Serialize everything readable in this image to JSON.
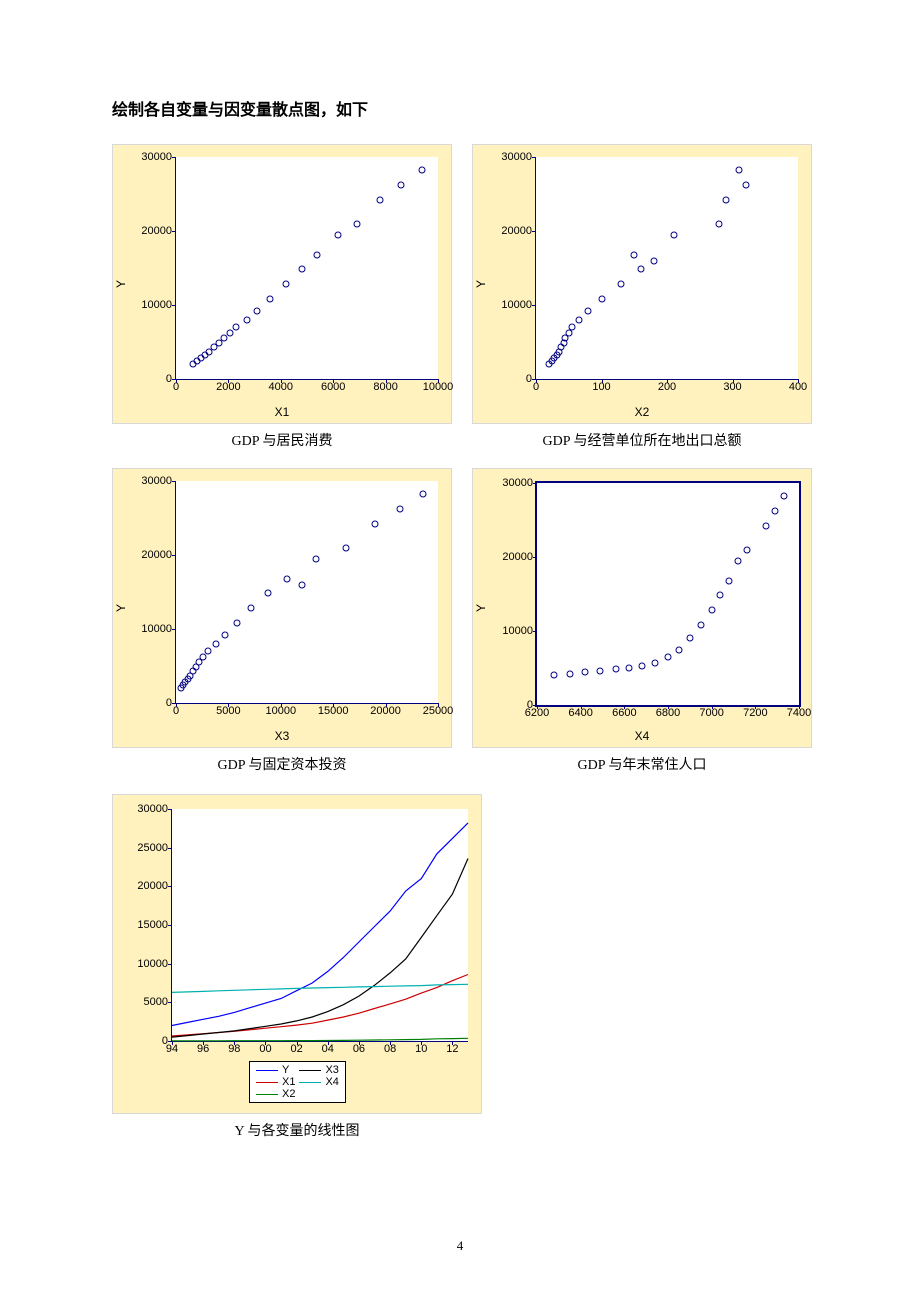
{
  "heading": "绘制各自变量与因变量散点图，如下",
  "page_number": "4",
  "scatter_charts": [
    {
      "id": "chart-x1",
      "caption": "GDP 与居民消费",
      "ylabel": "Y",
      "xlabel": "X1",
      "background_color": "#fff2be",
      "plot_bg": "#ffffff",
      "axis_color": "#000080",
      "marker_color": "#000080",
      "label_fontsize": 12,
      "tick_fontsize": 11,
      "xlim": [
        0,
        10000
      ],
      "ylim": [
        0,
        30000
      ],
      "xticks": [
        0,
        2000,
        4000,
        6000,
        8000,
        10000
      ],
      "yticks": [
        0,
        10000,
        20000,
        30000
      ],
      "full_border": false,
      "points": [
        [
          650,
          2000
        ],
        [
          800,
          2400
        ],
        [
          950,
          2800
        ],
        [
          1100,
          3200
        ],
        [
          1250,
          3700
        ],
        [
          1450,
          4300
        ],
        [
          1650,
          4900
        ],
        [
          1850,
          5500
        ],
        [
          2050,
          6200
        ],
        [
          2300,
          7000
        ],
        [
          2700,
          8000
        ],
        [
          3100,
          9200
        ],
        [
          3600,
          10800
        ],
        [
          4200,
          12800
        ],
        [
          4800,
          14800
        ],
        [
          5400,
          16800
        ],
        [
          6200,
          19400
        ],
        [
          6900,
          21000
        ],
        [
          7800,
          24200
        ],
        [
          8600,
          26200
        ],
        [
          9400,
          28200
        ]
      ]
    },
    {
      "id": "chart-x2",
      "caption": "GDP 与经营单位所在地出口总额",
      "ylabel": "Y",
      "xlabel": "X2",
      "background_color": "#fff2be",
      "plot_bg": "#ffffff",
      "axis_color": "#000080",
      "marker_color": "#000080",
      "label_fontsize": 12,
      "tick_fontsize": 11,
      "xlim": [
        0,
        400
      ],
      "ylim": [
        0,
        30000
      ],
      "xticks": [
        0,
        100,
        200,
        300,
        400
      ],
      "yticks": [
        0,
        10000,
        20000,
        30000
      ],
      "full_border": false,
      "points": [
        [
          20,
          2000
        ],
        [
          25,
          2400
        ],
        [
          28,
          2800
        ],
        [
          32,
          3200
        ],
        [
          35,
          3700
        ],
        [
          38,
          4300
        ],
        [
          42,
          4900
        ],
        [
          45,
          5500
        ],
        [
          50,
          6200
        ],
        [
          55,
          7000
        ],
        [
          65,
          8000
        ],
        [
          80,
          9200
        ],
        [
          100,
          10800
        ],
        [
          130,
          12800
        ],
        [
          160,
          14800
        ],
        [
          150,
          16800
        ],
        [
          210,
          19400
        ],
        [
          180,
          16000
        ],
        [
          280,
          21000
        ],
        [
          290,
          24200
        ],
        [
          320,
          26200
        ],
        [
          310,
          28200
        ]
      ]
    },
    {
      "id": "chart-x3",
      "caption": "GDP 与固定资本投资",
      "ylabel": "Y",
      "xlabel": "X3",
      "background_color": "#fff2be",
      "plot_bg": "#ffffff",
      "axis_color": "#000080",
      "marker_color": "#000080",
      "label_fontsize": 12,
      "tick_fontsize": 11,
      "xlim": [
        0,
        25000
      ],
      "ylim": [
        0,
        30000
      ],
      "xticks": [
        0,
        5000,
        10000,
        15000,
        20000,
        25000
      ],
      "yticks": [
        0,
        10000,
        20000,
        30000
      ],
      "full_border": false,
      "points": [
        [
          500,
          2000
        ],
        [
          700,
          2400
        ],
        [
          900,
          2800
        ],
        [
          1100,
          3200
        ],
        [
          1300,
          3700
        ],
        [
          1600,
          4300
        ],
        [
          1900,
          4900
        ],
        [
          2200,
          5500
        ],
        [
          2600,
          6200
        ],
        [
          3100,
          7000
        ],
        [
          3800,
          8000
        ],
        [
          4700,
          9200
        ],
        [
          5800,
          10800
        ],
        [
          7200,
          12800
        ],
        [
          8800,
          14800
        ],
        [
          10600,
          16800
        ],
        [
          13400,
          19400
        ],
        [
          12000,
          16000
        ],
        [
          16200,
          21000
        ],
        [
          19000,
          24200
        ],
        [
          21400,
          26200
        ],
        [
          23600,
          28200
        ]
      ]
    },
    {
      "id": "chart-x4",
      "caption": "GDP 与年末常住人口",
      "ylabel": "Y",
      "xlabel": "X4",
      "background_color": "#fff2be",
      "plot_bg": "#ffffff",
      "axis_color": "#000080",
      "marker_color": "#000080",
      "label_fontsize": 12,
      "tick_fontsize": 11,
      "xlim": [
        6200,
        7400
      ],
      "ylim": [
        0,
        30000
      ],
      "xticks": [
        6200,
        6400,
        6600,
        6800,
        7000,
        7200,
        7400
      ],
      "yticks": [
        0,
        10000,
        20000,
        30000
      ],
      "full_border": true,
      "points": [
        [
          6280,
          4000
        ],
        [
          6350,
          4200
        ],
        [
          6420,
          4400
        ],
        [
          6490,
          4600
        ],
        [
          6560,
          4800
        ],
        [
          6620,
          5000
        ],
        [
          6680,
          5300
        ],
        [
          6740,
          5700
        ],
        [
          6800,
          6500
        ],
        [
          6850,
          7500
        ],
        [
          6900,
          9000
        ],
        [
          6950,
          10800
        ],
        [
          7000,
          12800
        ],
        [
          7040,
          14800
        ],
        [
          7080,
          16800
        ],
        [
          7120,
          19400
        ],
        [
          7160,
          21000
        ],
        [
          7250,
          24200
        ],
        [
          7290,
          26200
        ],
        [
          7330,
          28200
        ]
      ]
    }
  ],
  "line_chart": {
    "id": "line-chart",
    "caption": "Y 与各变量的线性图",
    "background_color": "#fff2be",
    "plot_bg": "#ffffff",
    "axis_color": "#000080",
    "label_fontsize": 12,
    "tick_fontsize": 11,
    "xlim": [
      94,
      13
    ],
    "x_values": [
      94,
      95,
      96,
      97,
      98,
      99,
      100,
      101,
      102,
      103,
      104,
      105,
      106,
      107,
      108,
      109,
      110,
      111,
      112,
      113
    ],
    "xticks_pos": [
      94,
      96,
      98,
      100,
      102,
      104,
      106,
      108,
      110,
      112
    ],
    "xticks_labels": [
      "94",
      "96",
      "98",
      "00",
      "02",
      "04",
      "06",
      "08",
      "10",
      "12"
    ],
    "ylim": [
      0,
      30000
    ],
    "yticks": [
      0,
      5000,
      10000,
      15000,
      20000,
      25000,
      30000
    ],
    "series": [
      {
        "name": "Y",
        "color": "#0000ff",
        "values": [
          2000,
          2400,
          2800,
          3200,
          3700,
          4300,
          4900,
          5500,
          6500,
          7500,
          9000,
          10800,
          12800,
          14800,
          16800,
          19400,
          21000,
          24200,
          26200,
          28200
        ]
      },
      {
        "name": "X1",
        "color": "#cc0000",
        "values": [
          650,
          800,
          950,
          1100,
          1250,
          1450,
          1650,
          1850,
          2050,
          2300,
          2700,
          3100,
          3600,
          4200,
          4800,
          5400,
          6200,
          6900,
          7800,
          8600
        ]
      },
      {
        "name": "X2",
        "color": "#008000",
        "values": [
          20,
          25,
          28,
          32,
          35,
          38,
          42,
          45,
          50,
          55,
          65,
          80,
          100,
          130,
          160,
          180,
          210,
          280,
          310,
          350
        ]
      },
      {
        "name": "X3",
        "color": "#000000",
        "values": [
          500,
          700,
          900,
          1100,
          1300,
          1600,
          1900,
          2200,
          2600,
          3100,
          3800,
          4700,
          5800,
          7200,
          8800,
          10600,
          13400,
          16200,
          19000,
          23600
        ]
      },
      {
        "name": "X4",
        "color": "#00b0b0",
        "values": [
          6280,
          6350,
          6420,
          6490,
          6560,
          6620,
          6680,
          6740,
          6800,
          6850,
          6900,
          6950,
          7000,
          7040,
          7080,
          7120,
          7160,
          7250,
          7290,
          7330
        ]
      }
    ],
    "legend": [
      {
        "label": "Y",
        "color": "#0000ff"
      },
      {
        "label": "X3",
        "color": "#000000"
      },
      {
        "label": "X1",
        "color": "#cc0000"
      },
      {
        "label": "X4",
        "color": "#00b0b0"
      },
      {
        "label": "X2",
        "color": "#008000"
      }
    ]
  }
}
